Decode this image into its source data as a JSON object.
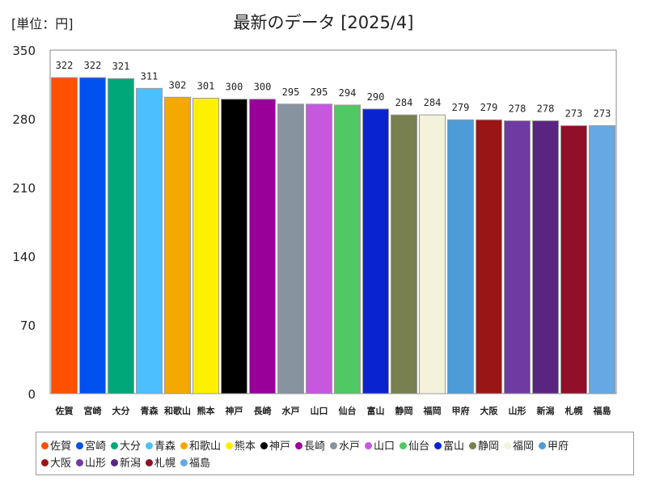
{
  "header": {
    "unit_label": "[単位：円]",
    "title": "最新のデータ [2025/4]"
  },
  "chart_data": {
    "type": "bar",
    "categories": [
      "佐賀",
      "宮崎",
      "大分",
      "青森",
      "和歌山",
      "熊本",
      "神戸",
      "長崎",
      "水戸",
      "山口",
      "仙台",
      "富山",
      "静岡",
      "福岡",
      "甲府",
      "大阪",
      "山形",
      "新潟",
      "札幌",
      "福島"
    ],
    "values": [
      322,
      322,
      321,
      311,
      302,
      301,
      300,
      300,
      295,
      295,
      294,
      290,
      284,
      284,
      279,
      279,
      278,
      278,
      273,
      273
    ],
    "colors": [
      "#ff4f00",
      "#0051f0",
      "#00a878",
      "#4cc0ff",
      "#f5a800",
      "#fff000",
      "#000000",
      "#99009a",
      "#87939f",
      "#c658e0",
      "#50c864",
      "#0a23d0",
      "#788050",
      "#f5f2dc",
      "#4d9cd8",
      "#9a1515",
      "#703aa3",
      "#5a2580",
      "#8f1028",
      "#66a8e4"
    ],
    "ylim": [
      0,
      350
    ],
    "yticks": [
      0,
      70,
      140,
      210,
      280,
      350
    ],
    "grid": false,
    "legend_position": "bottom"
  }
}
